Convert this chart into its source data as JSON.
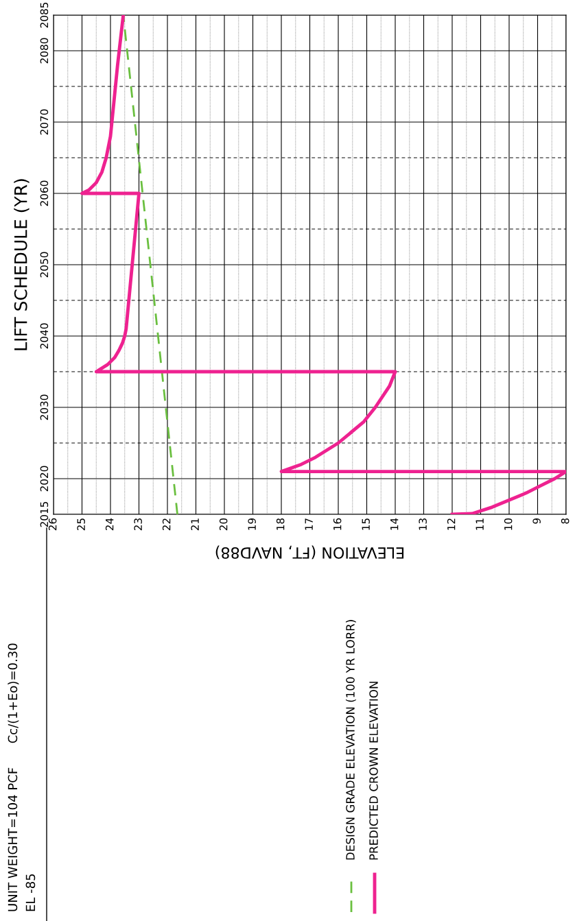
{
  "chart_data": {
    "type": "line",
    "ylabel": "LIFT SCHEDULE (YR)",
    "xlabel": "ELEVATION (FT, NAVD88)",
    "ylim": [
      2015,
      2085
    ],
    "yticks": [
      2015,
      2020,
      {
        "value": 2025,
        "label": null
      },
      2030,
      {
        "value": 2035,
        "label": null
      },
      2040,
      {
        "value": 2045,
        "label": null
      },
      2050,
      {
        "value": 2055,
        "label": null
      },
      2060,
      {
        "value": 2065,
        "label": null
      },
      2070,
      {
        "value": 2075,
        "label": null
      },
      2080,
      2085
    ],
    "xlim": [
      26,
      8
    ],
    "xticks": [
      8,
      {
        "value": 8.5,
        "label": null
      },
      9,
      {
        "value": 9.5,
        "label": null
      },
      10,
      {
        "value": 10.5,
        "label": null
      },
      11,
      {
        "value": 11.5,
        "label": null
      },
      12,
      {
        "value": 12.5,
        "label": null
      },
      13,
      {
        "value": 13.5,
        "label": null
      },
      14,
      {
        "value": 14.5,
        "label": null
      },
      15,
      {
        "value": 15.5,
        "label": null
      },
      16,
      {
        "value": 16.5,
        "label": null
      },
      17,
      {
        "value": 17.5,
        "label": null
      },
      18,
      {
        "value": 18.5,
        "label": null
      },
      19,
      {
        "value": 19.5,
        "label": null
      },
      20,
      {
        "value": 20.5,
        "label": null
      },
      21,
      {
        "value": 21.5,
        "label": null
      },
      22,
      {
        "value": 22.5,
        "label": null
      },
      23,
      {
        "value": 23.5,
        "label": null
      },
      24,
      {
        "value": 24.5,
        "label": null
      },
      25,
      {
        "value": 25.5,
        "label": null
      },
      26
    ],
    "grid": true,
    "legend": "bottom",
    "series": [
      {
        "name": "DESIGN GRADE ELEVATION (100 YR LORR)",
        "color": "#6abf3f",
        "line_style": "dashed",
        "x": [
          21.65,
          23.55
        ],
        "values": [
          2015,
          2085
        ]
      },
      {
        "name": "PREDICTED CROWN ELEVATION",
        "color": "#ee2290",
        "line_style": "solid",
        "x": [
          12,
          11.3,
          10.6,
          10.0,
          9.4,
          8.9,
          8.4,
          8.0,
          18,
          17.3,
          16.8,
          16.0,
          15.1,
          14.7,
          14.2,
          14.0,
          24.5,
          24.1,
          23.85,
          23.7,
          23.58,
          23.5,
          23.45,
          23.0,
          25,
          24.75,
          24.5,
          24.3,
          24.15,
          24.0,
          23.9,
          23.75,
          23.55
        ],
        "values": [
          2015,
          2015.1,
          2016,
          2017,
          2018,
          2019,
          2020,
          2021,
          2021,
          2022,
          2023,
          2025,
          2028,
          2030,
          2033,
          2035,
          2035,
          2036,
          2037,
          2038,
          2039,
          2040,
          2041,
          2060,
          2060,
          2060.5,
          2061.5,
          2063,
          2065,
          2068,
          2072,
          2078,
          2085
        ]
      }
    ],
    "annotations": [
      "UNIT WEIGHT=104 PCF      Cc/(1+Eo)=0.30",
      "EL -85"
    ]
  }
}
